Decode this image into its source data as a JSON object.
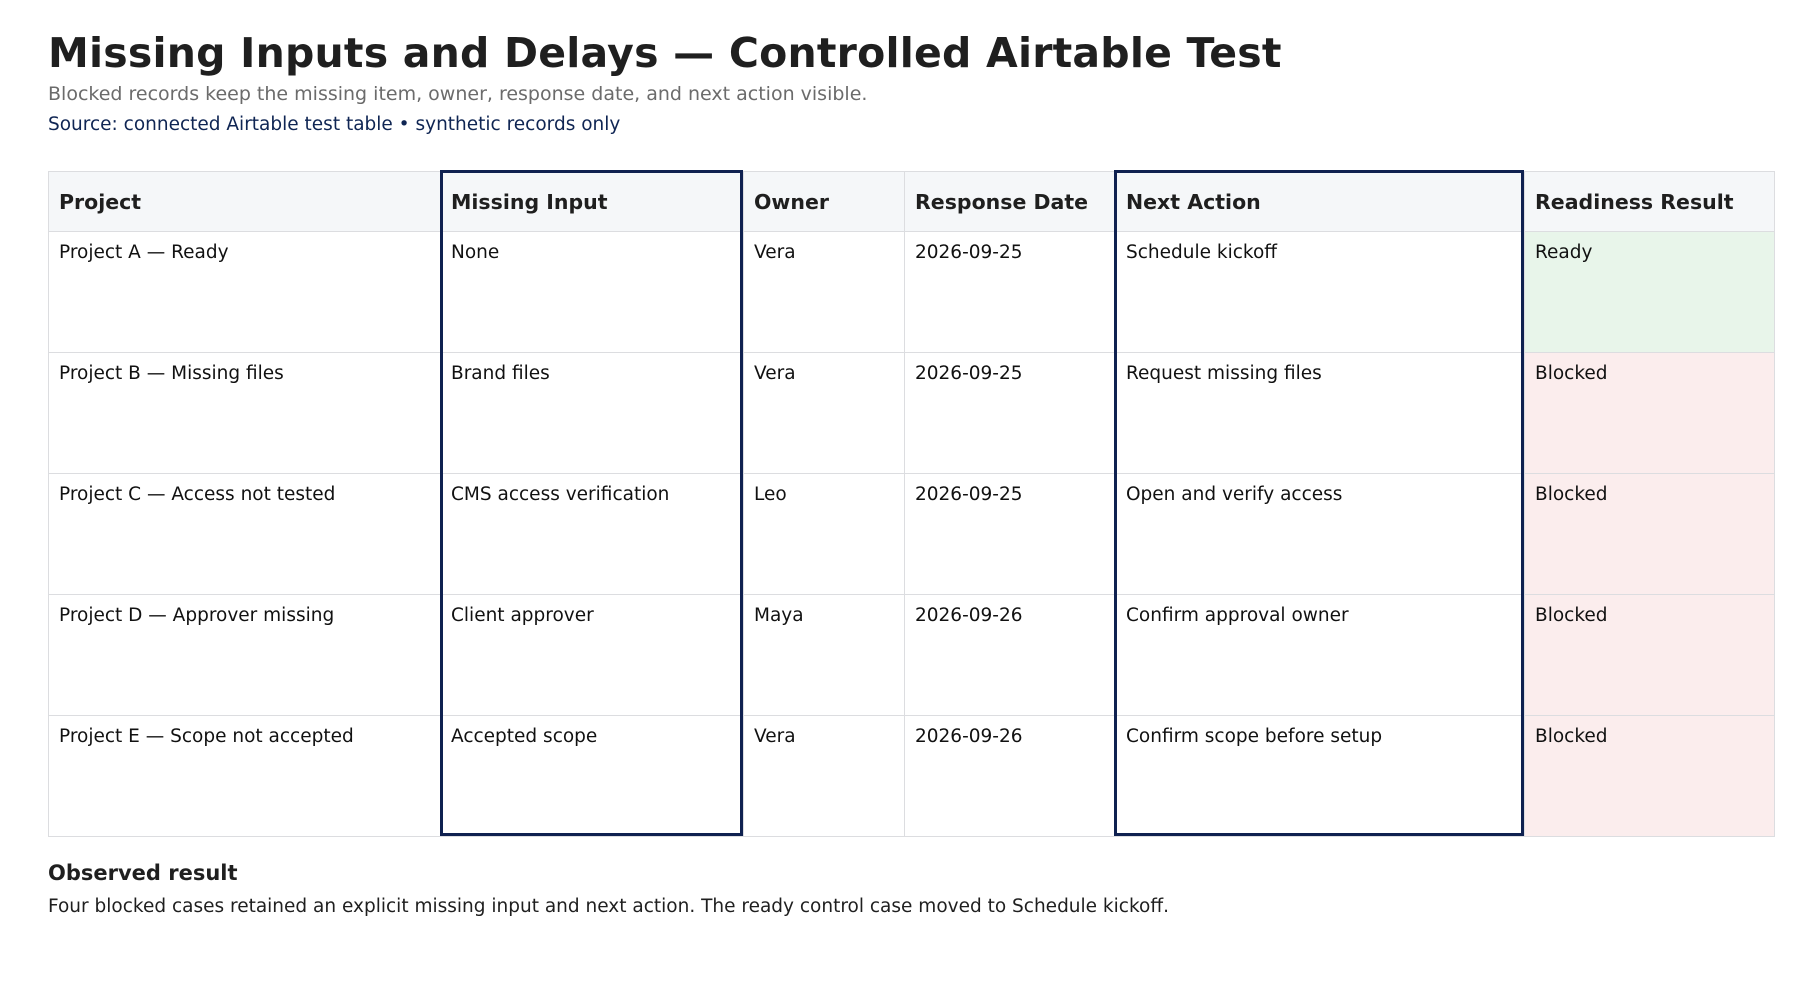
{
  "header": {
    "title": "Missing Inputs and Delays — Controlled Airtable Test",
    "subtitle": "Blocked records keep the missing item, owner, response date, and next action visible.",
    "source": "Source: connected Airtable test table • synthetic records only"
  },
  "table": {
    "columns": [
      "Project",
      "Missing Input",
      "Owner",
      "Response Date",
      "Next Action",
      "Readiness Result"
    ],
    "highlighted_columns": [
      "Missing Input",
      "Next Action"
    ],
    "rows": [
      [
        "Project A — Ready",
        "None",
        "Vera",
        "2026-09-25",
        "Schedule kickoff",
        "Ready"
      ],
      [
        "Project B — Missing files",
        "Brand files",
        "Vera",
        "2026-09-25",
        "Request missing files",
        "Blocked"
      ],
      [
        "Project C — Access not tested",
        "CMS access verification",
        "Leo",
        "2026-09-25",
        "Open and verify access",
        "Blocked"
      ],
      [
        "Project D — Approver missing",
        "Client approver",
        "Maya",
        "2026-09-26",
        "Confirm approval owner",
        "Blocked"
      ],
      [
        "Project E — Scope not accepted",
        "Accepted scope",
        "Vera",
        "2026-09-26",
        "Confirm scope before setup",
        "Blocked"
      ]
    ]
  },
  "observed": {
    "heading": "Observed result",
    "text": "Four blocked cases retained an explicit missing input and next action. The ready control case moved to Schedule kickoff."
  },
  "colors": {
    "title": "#1f1f1f",
    "subtitle": "#6b6b6b",
    "source": "#0f2553",
    "highlight_outline": "#0f2150",
    "ready_background": "#e8f5ea",
    "blocked_background": "#fbeded",
    "header_background": "#f5f7f9"
  }
}
